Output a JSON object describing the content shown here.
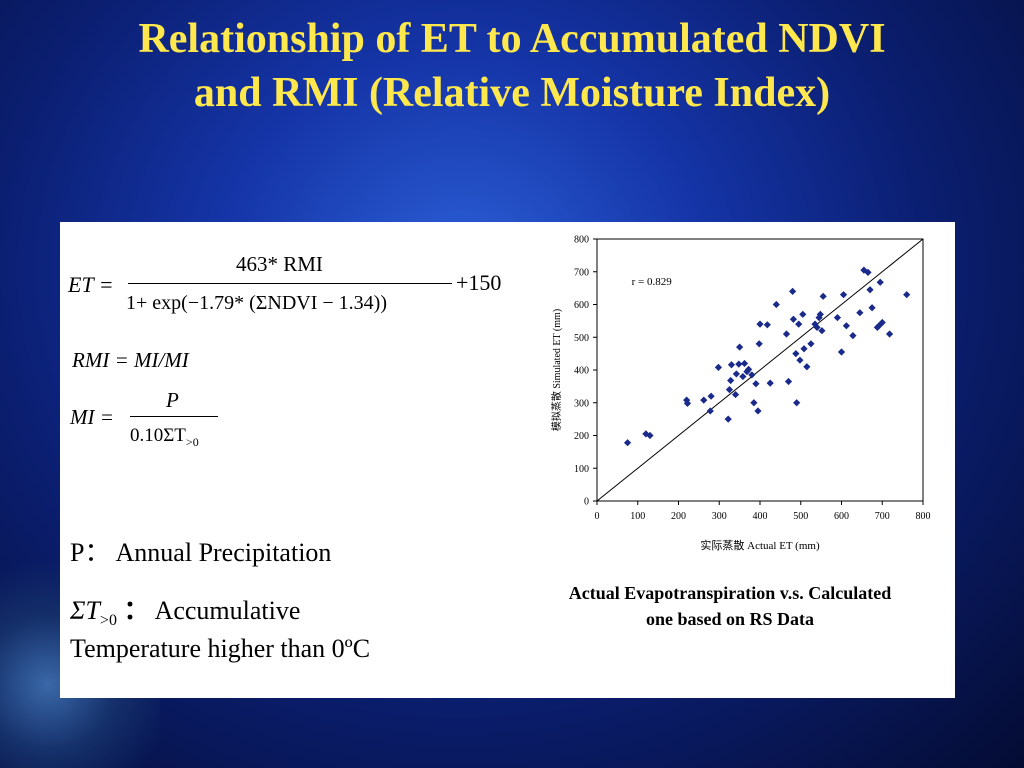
{
  "title": {
    "line1": "Relationship of ET to Accumulated NDVI",
    "line2": "and RMI (Relative Moisture Index)"
  },
  "formulas": {
    "et_lhs": "ET =",
    "et_numerator": "463* RMI",
    "et_denominator": "1+ exp(−1.79* (ΣNDVI − 1.34))",
    "et_tail": "+150",
    "rmi": "RMI = MI/MI",
    "mi_lhs": "MI =",
    "mi_numerator": "P",
    "mi_denominator_prefix": "0.10ΣT",
    "mi_denominator_sub": ">0"
  },
  "legend_text": {
    "p_def": "P： Annual Precipitation",
    "t_sym": "ΣT",
    "t_sub": ">0",
    "t_colon": "：",
    "t_def_1": "Accumulative",
    "t_def_2": "Temperature higher than 0ºC"
  },
  "caption": {
    "line1": "Actual Evapotranspiration v.s. Calculated",
    "line2": "one based on RS Data"
  },
  "chart_data": {
    "type": "scatter",
    "xlabel": "实际蒸散  Actual ET (mm)",
    "ylabel": "模拟蒸散  Simulated ET (mm)",
    "xlim": [
      0,
      800
    ],
    "ylim": [
      0,
      800
    ],
    "xticks": [
      0,
      100,
      200,
      300,
      400,
      500,
      600,
      700,
      800
    ],
    "yticks": [
      0,
      100,
      200,
      300,
      400,
      500,
      600,
      700,
      800
    ],
    "annotation": "r = 0.829",
    "reference_line": [
      [
        0,
        0
      ],
      [
        800,
        800
      ]
    ],
    "marker": "diamond",
    "marker_color": "#1a2a8a",
    "points": [
      [
        75,
        178
      ],
      [
        120,
        205
      ],
      [
        130,
        200
      ],
      [
        220,
        308
      ],
      [
        222,
        298
      ],
      [
        262,
        308
      ],
      [
        278,
        275
      ],
      [
        280,
        320
      ],
      [
        298,
        408
      ],
      [
        322,
        250
      ],
      [
        325,
        340
      ],
      [
        328,
        368
      ],
      [
        330,
        416
      ],
      [
        340,
        325
      ],
      [
        342,
        388
      ],
      [
        348,
        418
      ],
      [
        350,
        470
      ],
      [
        358,
        380
      ],
      [
        362,
        420
      ],
      [
        368,
        395
      ],
      [
        372,
        402
      ],
      [
        380,
        385
      ],
      [
        385,
        300
      ],
      [
        390,
        358
      ],
      [
        395,
        275
      ],
      [
        398,
        480
      ],
      [
        400,
        540
      ],
      [
        418,
        538
      ],
      [
        425,
        360
      ],
      [
        440,
        600
      ],
      [
        465,
        510
      ],
      [
        470,
        365
      ],
      [
        480,
        640
      ],
      [
        482,
        555
      ],
      [
        488,
        450
      ],
      [
        490,
        300
      ],
      [
        495,
        540
      ],
      [
        498,
        430
      ],
      [
        505,
        570
      ],
      [
        508,
        465
      ],
      [
        515,
        410
      ],
      [
        525,
        480
      ],
      [
        535,
        540
      ],
      [
        540,
        530
      ],
      [
        545,
        560
      ],
      [
        548,
        570
      ],
      [
        552,
        520
      ],
      [
        555,
        625
      ],
      [
        590,
        560
      ],
      [
        600,
        455
      ],
      [
        605,
        630
      ],
      [
        612,
        535
      ],
      [
        628,
        505
      ],
      [
        645,
        575
      ],
      [
        655,
        705
      ],
      [
        665,
        698
      ],
      [
        670,
        645
      ],
      [
        675,
        590
      ],
      [
        688,
        530
      ],
      [
        692,
        535
      ],
      [
        695,
        668
      ],
      [
        700,
        545
      ],
      [
        718,
        510
      ],
      [
        760,
        630
      ]
    ]
  }
}
